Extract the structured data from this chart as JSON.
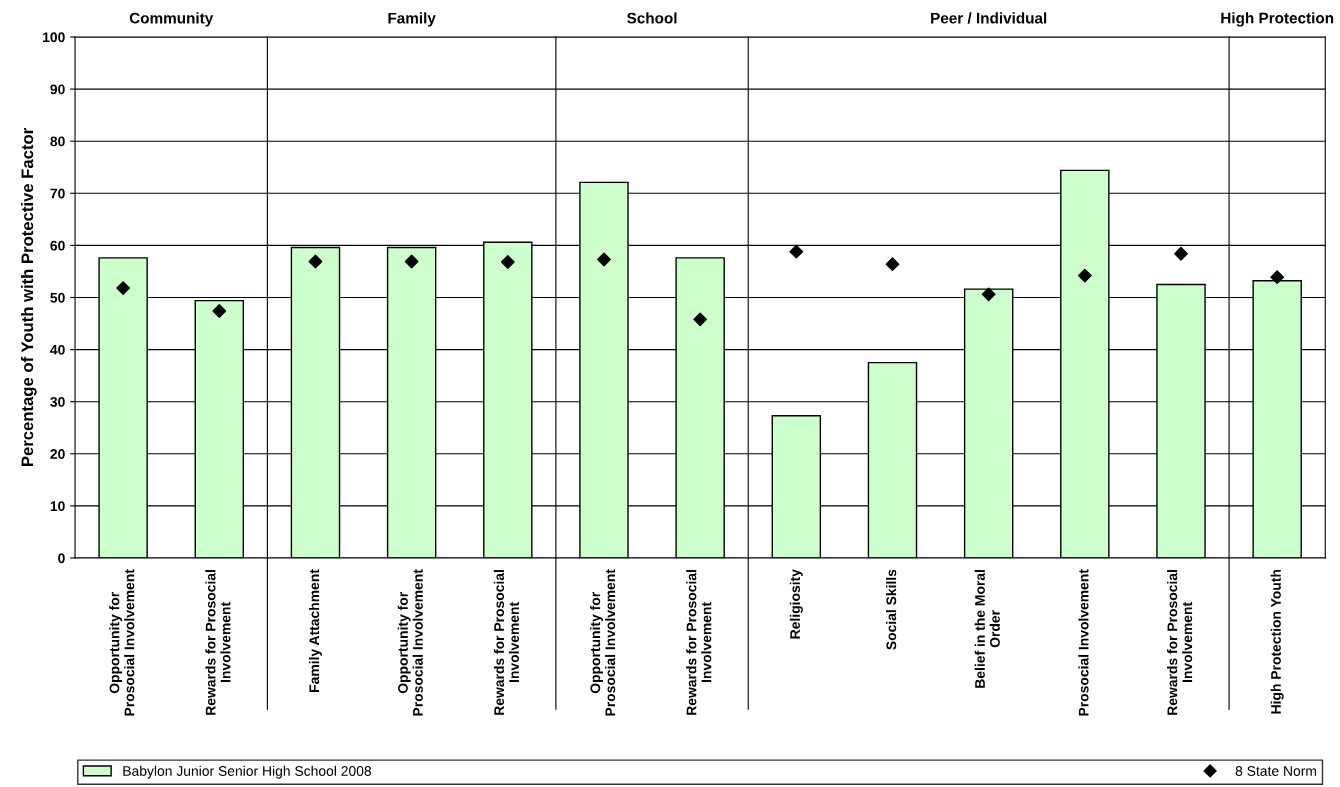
{
  "chart_data": {
    "type": "bar",
    "ylabel": "Percentage of Youth with Protective Factor",
    "categories": [
      "Opportunity for\nProsocial Involvement",
      "Rewards for Prosocial\nInvolvement",
      "Family Attachment",
      "Opportunity for\nProsocial Involvement",
      "Rewards for Prosocial\nInvolvement",
      "Opportunity for\nProsocial Involvement",
      "Rewards for Prosocial\nInvolvement",
      "Religiosity",
      "Social Skills",
      "Belief in the Moral\nOrder",
      "Prosocial Involvement",
      "Rewards for Prosocial\nInvolvement",
      "High Protection Youth"
    ],
    "series": [
      {
        "name": "Babylon Junior Senior High School 2008",
        "color": "#ccffcc",
        "values": [
          57.6,
          49.4,
          59.6,
          59.6,
          60.6,
          72.1,
          57.6,
          27.3,
          37.5,
          51.6,
          74.4,
          52.5,
          53.2
        ]
      },
      {
        "name": "8 State Norm",
        "type": "scatter",
        "marker": "diamond",
        "color": "#000000",
        "values": [
          51.8,
          47.4,
          56.9,
          56.9,
          56.8,
          57.3,
          45.8,
          58.8,
          56.4,
          50.6,
          54.2,
          58.4,
          53.9
        ]
      }
    ],
    "annotations": [
      "Community",
      "Family",
      "School",
      "Peer / Individual",
      "High Protection"
    ],
    "ylim": [
      0,
      100
    ],
    "yticks": [
      0,
      10,
      20,
      30,
      40,
      50,
      60,
      70,
      80,
      90,
      100
    ],
    "grid": "y",
    "legend": "bottom"
  }
}
